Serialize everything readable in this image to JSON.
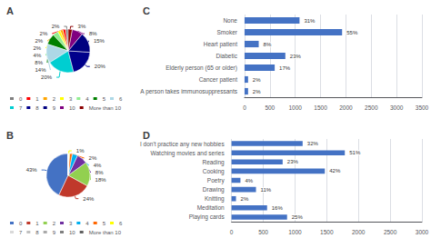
{
  "chart_data": [
    {
      "type": "pie",
      "title": "A",
      "categories": [
        "0",
        "1",
        "2",
        "3",
        "4",
        "5",
        "6",
        "7",
        "8",
        "9",
        "10",
        "More than 10"
      ],
      "values": [
        2,
        2,
        2,
        2,
        4,
        8,
        14,
        20,
        20,
        15,
        8,
        3
      ],
      "value_labels": [
        "2%",
        "2%",
        "2%",
        "2%",
        "4%",
        "8%",
        "14%",
        "20%",
        "20%",
        "15%",
        "8%",
        "3%"
      ],
      "colors": [
        "#808080",
        "#FF0000",
        "#FFA500",
        "#FFFF00",
        "#90EE90",
        "#008000",
        "#ADD8E6",
        "#00CED1",
        "#00008B",
        "#000080",
        "#800080",
        "#8B0000"
      ],
      "data_labels": true,
      "legend": "bottom"
    },
    {
      "type": "pie",
      "title": "B",
      "categories": [
        "0",
        "1",
        "2",
        "3",
        "4",
        "5",
        "6",
        "7",
        "8",
        "9",
        "10",
        "More than 10"
      ],
      "values": [
        43,
        24,
        18,
        8,
        4,
        2,
        1,
        0,
        0,
        0,
        0,
        0
      ],
      "value_labels": [
        "43%",
        "24%",
        "18%",
        "8%",
        "4%",
        "2%",
        "1%",
        null,
        null,
        null,
        null,
        null
      ],
      "colors": [
        "#4472C4",
        "#C0392B",
        "#92D050",
        "#7030A0",
        "#00B0F0",
        "#FF6600",
        "#FFFF00",
        "#D9D9D9",
        "#C0C0C0",
        "#A9A9A9",
        "#808080",
        "#606060"
      ],
      "data_labels": true,
      "legend": "bottom"
    },
    {
      "type": "bar",
      "title": "C",
      "orientation": "horizontal",
      "categories": [
        "None",
        "Smoker",
        "Heart patient",
        "Diabetic",
        "Elderly person (65 or older)",
        "Cancer patient",
        "A person takes immunosuppressants"
      ],
      "values": [
        1085,
        1925,
        280,
        805,
        595,
        70,
        70
      ],
      "annotations": [
        "31%",
        "55%",
        "8%",
        "23%",
        "17%",
        "2%",
        "2%"
      ],
      "color": "#4472C4",
      "xlim": [
        0,
        3500
      ],
      "xticks": [
        0,
        500,
        1000,
        1500,
        2000,
        2500,
        3000,
        3500
      ],
      "grid": true
    },
    {
      "type": "bar",
      "title": "D",
      "orientation": "horizontal",
      "categories": [
        "I don't practice any new hobbies",
        "Watching movies and series",
        "Reading",
        "Cooking",
        "Poetry",
        "Drawing",
        "Knitting",
        "Meditation",
        "Playing cards"
      ],
      "values": [
        1120,
        1785,
        805,
        1470,
        140,
        385,
        70,
        560,
        875
      ],
      "annotations": [
        "32%",
        "51%",
        "23%",
        "42%",
        "4%",
        "11%",
        "2%",
        "16%",
        "25%"
      ],
      "color": "#4472C4",
      "xlim": [
        0,
        3000
      ],
      "xticks": [
        0,
        500,
        1000,
        1500,
        2000,
        2500,
        3000
      ],
      "grid": true
    }
  ]
}
